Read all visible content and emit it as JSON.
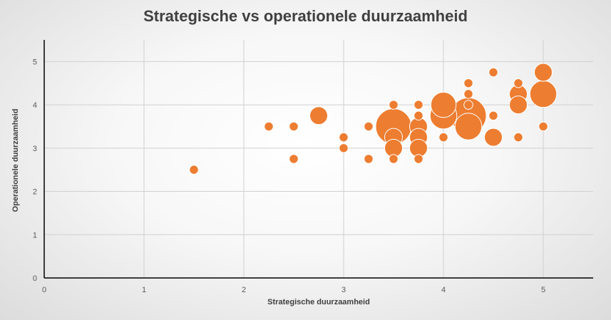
{
  "chart_data": {
    "type": "bubble",
    "title": "Strategische vs operationele duurzaamheid",
    "xlabel": "Strategische duurzaamheid",
    "ylabel": "Operationele duurzaamheid",
    "xlim": [
      0,
      5.5
    ],
    "ylim": [
      0,
      5.5
    ],
    "xticks": [
      0,
      1,
      2,
      3,
      4,
      5
    ],
    "yticks": [
      0,
      1,
      2,
      3,
      4,
      5
    ],
    "grid": true,
    "legend": "none",
    "color": "#ed7d31",
    "series": [
      {
        "points": [
          {
            "x": 1.5,
            "y": 2.5,
            "size": 1
          },
          {
            "x": 2.25,
            "y": 3.5,
            "size": 1
          },
          {
            "x": 2.5,
            "y": 3.5,
            "size": 1
          },
          {
            "x": 2.5,
            "y": 2.75,
            "size": 1
          },
          {
            "x": 2.75,
            "y": 3.75,
            "size": 4
          },
          {
            "x": 3.0,
            "y": 3.25,
            "size": 1
          },
          {
            "x": 3.0,
            "y": 3.0,
            "size": 1
          },
          {
            "x": 3.25,
            "y": 3.5,
            "size": 1
          },
          {
            "x": 3.25,
            "y": 2.75,
            "size": 1
          },
          {
            "x": 3.5,
            "y": 4.0,
            "size": 1
          },
          {
            "x": 3.5,
            "y": 3.5,
            "size": 16
          },
          {
            "x": 3.5,
            "y": 3.25,
            "size": 4
          },
          {
            "x": 3.5,
            "y": 3.0,
            "size": 4
          },
          {
            "x": 3.5,
            "y": 2.75,
            "size": 1
          },
          {
            "x": 3.75,
            "y": 4.0,
            "size": 1
          },
          {
            "x": 3.75,
            "y": 3.75,
            "size": 1
          },
          {
            "x": 3.75,
            "y": 3.5,
            "size": 4
          },
          {
            "x": 3.75,
            "y": 3.25,
            "size": 4
          },
          {
            "x": 3.75,
            "y": 3.0,
            "size": 4
          },
          {
            "x": 3.75,
            "y": 2.75,
            "size": 1
          },
          {
            "x": 4.0,
            "y": 4.0,
            "size": 8
          },
          {
            "x": 4.0,
            "y": 3.75,
            "size": 9
          },
          {
            "x": 4.0,
            "y": 3.25,
            "size": 1
          },
          {
            "x": 4.25,
            "y": 4.5,
            "size": 1
          },
          {
            "x": 4.25,
            "y": 4.25,
            "size": 1
          },
          {
            "x": 4.25,
            "y": 4.0,
            "size": 1
          },
          {
            "x": 4.25,
            "y": 3.5,
            "size": 9
          },
          {
            "x": 4.25,
            "y": 3.75,
            "size": 16
          },
          {
            "x": 4.5,
            "y": 4.75,
            "size": 1
          },
          {
            "x": 4.5,
            "y": 3.75,
            "size": 1
          },
          {
            "x": 4.5,
            "y": 3.25,
            "size": 4
          },
          {
            "x": 4.75,
            "y": 4.5,
            "size": 1
          },
          {
            "x": 4.75,
            "y": 4.25,
            "size": 4
          },
          {
            "x": 4.75,
            "y": 4.0,
            "size": 4
          },
          {
            "x": 4.75,
            "y": 3.25,
            "size": 1
          },
          {
            "x": 5.0,
            "y": 4.75,
            "size": 4
          },
          {
            "x": 5.0,
            "y": 4.25,
            "size": 9
          },
          {
            "x": 5.0,
            "y": 3.5,
            "size": 1
          }
        ]
      }
    ]
  }
}
